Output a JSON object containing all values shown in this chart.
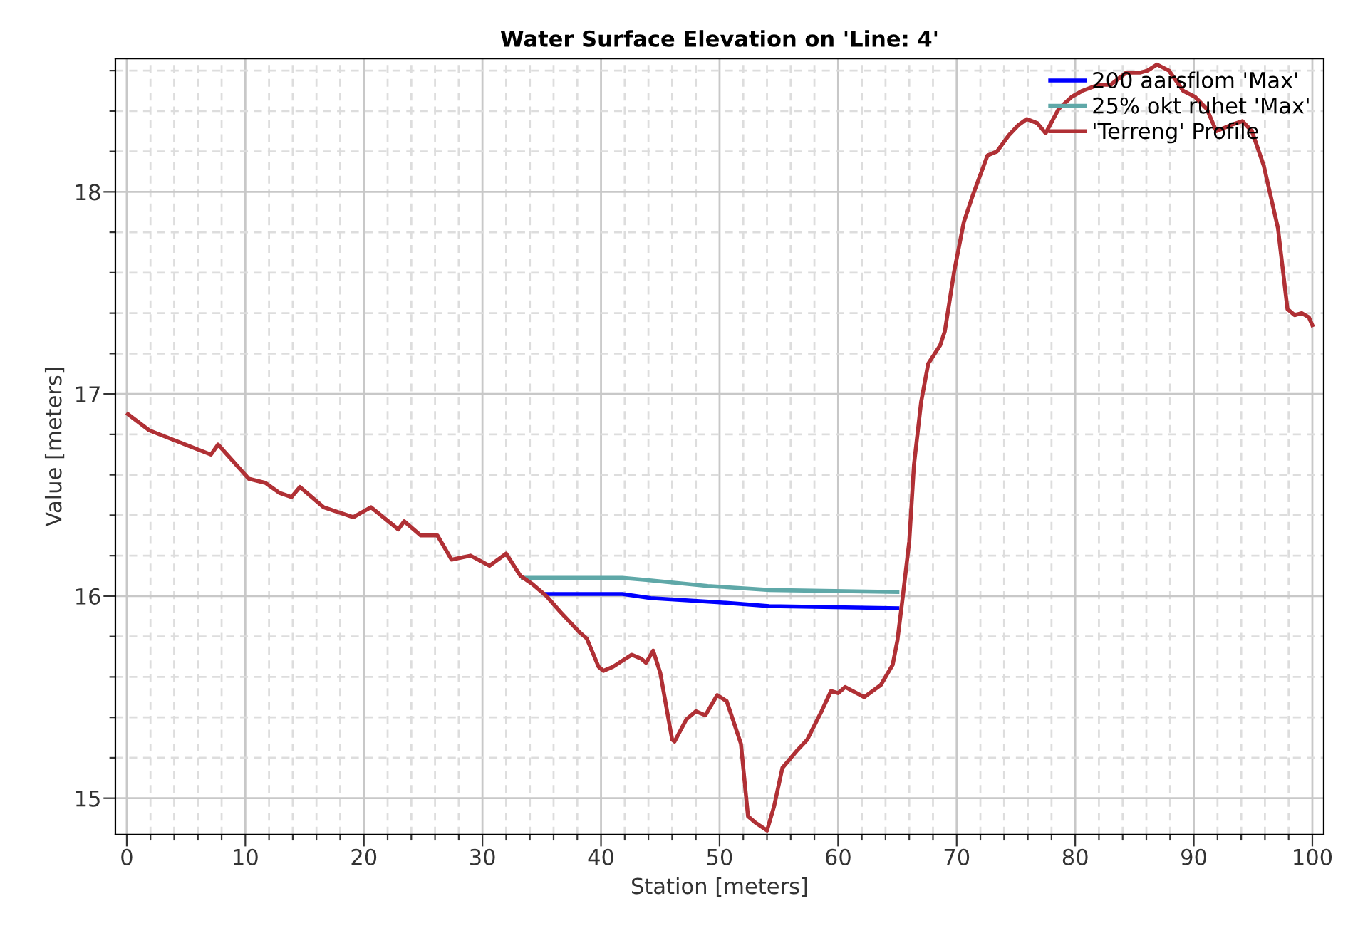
{
  "chart_data": {
    "type": "line",
    "title": "Water Surface Elevation on 'Line: 4'",
    "xlabel": "Station [meters]",
    "ylabel": "Value [meters]",
    "xlim": [
      -0.96,
      100.96
    ],
    "ylim": [
      14.82,
      18.66
    ],
    "xticks": [
      0,
      {
        "value": 2,
        "label": null
      },
      {
        "value": 4,
        "label": null
      },
      {
        "value": 6,
        "label": null
      },
      {
        "value": 8,
        "label": null
      },
      10,
      {
        "value": 12,
        "label": null
      },
      {
        "value": 14,
        "label": null
      },
      {
        "value": 16,
        "label": null
      },
      {
        "value": 18,
        "label": null
      },
      20,
      {
        "value": 22,
        "label": null
      },
      {
        "value": 24,
        "label": null
      },
      {
        "value": 26,
        "label": null
      },
      {
        "value": 28,
        "label": null
      },
      30,
      {
        "value": 32,
        "label": null
      },
      {
        "value": 34,
        "label": null
      },
      {
        "value": 36,
        "label": null
      },
      {
        "value": 38,
        "label": null
      },
      40,
      {
        "value": 42,
        "label": null
      },
      {
        "value": 44,
        "label": null
      },
      {
        "value": 46,
        "label": null
      },
      {
        "value": 48,
        "label": null
      },
      50,
      {
        "value": 52,
        "label": null
      },
      {
        "value": 54,
        "label": null
      },
      {
        "value": 56,
        "label": null
      },
      {
        "value": 58,
        "label": null
      },
      60,
      {
        "value": 62,
        "label": null
      },
      {
        "value": 64,
        "label": null
      },
      {
        "value": 66,
        "label": null
      },
      {
        "value": 68,
        "label": null
      },
      70,
      {
        "value": 72,
        "label": null
      },
      {
        "value": 74,
        "label": null
      },
      {
        "value": 76,
        "label": null
      },
      {
        "value": 78,
        "label": null
      },
      80,
      {
        "value": 82,
        "label": null
      },
      {
        "value": 84,
        "label": null
      },
      {
        "value": 86,
        "label": null
      },
      {
        "value": 88,
        "label": null
      },
      90,
      {
        "value": 92,
        "label": null
      },
      {
        "value": 94,
        "label": null
      },
      {
        "value": 96,
        "label": null
      },
      {
        "value": 98,
        "label": null
      },
      100
    ],
    "yticks": [
      15,
      {
        "value": 15.2,
        "label": null
      },
      {
        "value": 15.4,
        "label": null
      },
      {
        "value": 15.6,
        "label": null
      },
      {
        "value": 15.8,
        "label": null
      },
      16,
      {
        "value": 16.2,
        "label": null
      },
      {
        "value": 16.4,
        "label": null
      },
      {
        "value": 16.6,
        "label": null
      },
      {
        "value": 16.8,
        "label": null
      },
      17,
      {
        "value": 17.2,
        "label": null
      },
      {
        "value": 17.4,
        "label": null
      },
      {
        "value": 17.6,
        "label": null
      },
      {
        "value": 17.8,
        "label": null
      },
      18,
      {
        "value": 18.2,
        "label": null
      },
      {
        "value": 18.4,
        "label": null
      },
      {
        "value": 18.6,
        "label": null
      }
    ],
    "grid": true,
    "legend": "top right",
    "series": [
      {
        "name": "200 aarsflom 'Max'",
        "color": "#0000ff",
        "x": [
          35.4,
          41.8,
          44.2,
          49.8,
          54.2,
          65.0
        ],
        "values": [
          16.01,
          16.01,
          15.99,
          15.97,
          15.95,
          15.94
        ]
      },
      {
        "name": "25% okt ruhet 'Max'",
        "color": "#5fa8a8",
        "x": [
          33.4,
          41.8,
          43.8,
          49.0,
          54.2,
          65.0
        ],
        "values": [
          16.09,
          16.09,
          16.08,
          16.05,
          16.03,
          16.02
        ]
      },
      {
        "name": "'Terreng' Profile",
        "color": "#b03035",
        "x": [
          0.1,
          1.9,
          4.5,
          7.1,
          7.7,
          10.3,
          11.7,
          12.9,
          13.9,
          14.6,
          16.6,
          19.1,
          20.6,
          22.9,
          23.4,
          24.8,
          26.2,
          27.4,
          29.0,
          30.6,
          32.0,
          33.2,
          34.2,
          35.4,
          36.6,
          38.2,
          38.8,
          39.8,
          40.2,
          41.0,
          42.6,
          43.4,
          43.8,
          44.4,
          45.0,
          46.0,
          46.2,
          47.2,
          48.0,
          48.8,
          49.8,
          50.6,
          51.8,
          52.4,
          53.0,
          54.0,
          54.6,
          55.3,
          56.6,
          57.4,
          58.6,
          59.4,
          60.0,
          60.6,
          62.2,
          63.6,
          64.6,
          65.0,
          65.4,
          66.0,
          66.4,
          67.0,
          67.6,
          68.6,
          69.0,
          69.8,
          70.6,
          71.4,
          72.6,
          73.4,
          74.4,
          75.2,
          75.9,
          76.8,
          77.5,
          78.6,
          79.7,
          80.6,
          81.5,
          82.2,
          83.0,
          84.3,
          85.5,
          86.1,
          86.9,
          87.9,
          89.1,
          90.1,
          91.1,
          91.9,
          93.1,
          94.1,
          94.9,
          95.9,
          97.1,
          97.9,
          98.5,
          99.1,
          99.7,
          100.0
        ],
        "values": [
          16.9,
          16.82,
          16.76,
          16.7,
          16.75,
          16.58,
          16.56,
          16.51,
          16.49,
          16.54,
          16.44,
          16.39,
          16.44,
          16.33,
          16.37,
          16.3,
          16.3,
          16.18,
          16.2,
          16.15,
          16.21,
          16.1,
          16.06,
          16.0,
          15.92,
          15.82,
          15.79,
          15.65,
          15.63,
          15.65,
          15.71,
          15.69,
          15.67,
          15.73,
          15.62,
          15.29,
          15.28,
          15.39,
          15.43,
          15.41,
          15.51,
          15.48,
          15.27,
          14.91,
          14.88,
          14.84,
          14.96,
          15.15,
          15.24,
          15.29,
          15.43,
          15.53,
          15.52,
          15.55,
          15.5,
          15.56,
          15.66,
          15.78,
          15.97,
          16.27,
          16.65,
          16.96,
          17.15,
          17.24,
          17.31,
          17.61,
          17.85,
          17.99,
          18.18,
          18.2,
          18.28,
          18.33,
          18.36,
          18.34,
          18.29,
          18.41,
          18.47,
          18.5,
          18.52,
          18.53,
          18.53,
          18.59,
          18.59,
          18.6,
          18.63,
          18.6,
          18.5,
          18.47,
          18.41,
          18.3,
          18.33,
          18.35,
          18.3,
          18.13,
          17.82,
          17.42,
          17.39,
          17.4,
          17.38,
          17.34
        ]
      }
    ]
  }
}
